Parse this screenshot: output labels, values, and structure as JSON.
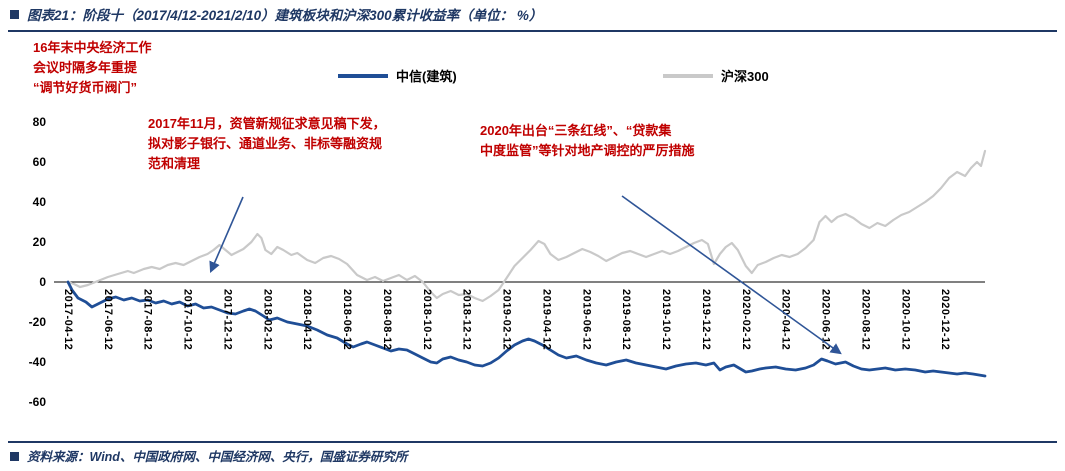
{
  "colors": {
    "navy": "#1F3864",
    "red": "#C00000",
    "arrow_blue": "#2F5597",
    "axis_text": "#000000"
  },
  "header": {
    "title": "图表21：阶段十（2017/4/12-2021/2/10）建筑板块和沪深300累计收益率（单位：  %）"
  },
  "annotations": {
    "note1": "16年末中央经济工作\n会议时隔多年重提\n“调节好货币阀门”",
    "note2": "2017年11月，资管新规征求意见稿下发，\n拟对影子银行、通道业务、非标等融资规\n范和清理",
    "note3": "2020年出台“三条红线”、“贷款集\n中度监管”等针对地产调控的严厉措施"
  },
  "footer": {
    "source": "资料来源：Wind、中国政府网、中国经济网、央行，国盛证券研究所"
  },
  "chart_data": {
    "type": "line",
    "title": "阶段十（2017/4/12-2021/2/10）建筑板块和沪深300累计收益率",
    "unit": "%",
    "xlabel": "",
    "ylabel": "",
    "ylim": [
      -60,
      80
    ],
    "y_ticks": [
      80,
      60,
      40,
      20,
      0,
      -20,
      -40,
      -60
    ],
    "x_unit": "months_since_2017-04-12",
    "x_range": [
      0,
      46
    ],
    "x_ticks": [
      0,
      2,
      4,
      6,
      8,
      10,
      12,
      14,
      16,
      18,
      20,
      22,
      24,
      26,
      28,
      30,
      32,
      34,
      36,
      38,
      40,
      42,
      44
    ],
    "x_tick_labels": [
      "2017-04-12",
      "2017-06-12",
      "2017-08-12",
      "2017-10-12",
      "2017-12-12",
      "2018-02-12",
      "2018-04-12",
      "2018-06-12",
      "2018-08-12",
      "2018-10-12",
      "2018-12-12",
      "2019-02-12",
      "2019-04-12",
      "2019-06-12",
      "2019-08-12",
      "2019-10-12",
      "2019-12-12",
      "2020-02-12",
      "2020-04-12",
      "2020-06-12",
      "2020-08-12",
      "2020-10-12",
      "2020-12-12"
    ],
    "gridlines": false,
    "legend_position": "top",
    "series": [
      {
        "name": "中信(建筑)",
        "color": "#1F4E96",
        "x": [
          0,
          0.2,
          0.5,
          0.9,
          1.2,
          1.5,
          2,
          2.4,
          2.8,
          3.2,
          3.6,
          4,
          4.4,
          4.8,
          5.2,
          5.6,
          6,
          6.4,
          6.8,
          7.2,
          7.6,
          8,
          8.4,
          8.8,
          9.1,
          9.4,
          9.8,
          10.1,
          10.5,
          11,
          11.5,
          12,
          12.5,
          13,
          13.5,
          14,
          14.3,
          14.7,
          15,
          15.4,
          15.8,
          16.2,
          16.6,
          17,
          17.4,
          17.8,
          18.2,
          18.5,
          18.8,
          19.2,
          19.6,
          20,
          20.4,
          20.8,
          21.2,
          21.6,
          22,
          22.4,
          22.8,
          23.1,
          23.4,
          23.8,
          24.2,
          24.6,
          25,
          25.5,
          26,
          26.5,
          27,
          27.5,
          28,
          28.5,
          29,
          29.5,
          30,
          30.5,
          31,
          31.5,
          32,
          32.4,
          32.7,
          33,
          33.4,
          34,
          34.3,
          34.7,
          35,
          35.5,
          36,
          36.5,
          37,
          37.4,
          37.8,
          38.1,
          38.5,
          39,
          39.4,
          39.8,
          40.2,
          40.6,
          41,
          41.5,
          42,
          42.5,
          43,
          43.4,
          43.8,
          44.2,
          44.6,
          45,
          45.4,
          45.7,
          46
        ],
        "y": [
          0,
          -4,
          -8,
          -10,
          -12.5,
          -11,
          -8.5,
          -7.5,
          -9,
          -8,
          -9.5,
          -9,
          -10.5,
          -9.5,
          -11,
          -10,
          -12,
          -11,
          -13,
          -12.5,
          -14,
          -15.5,
          -16,
          -14.5,
          -13.5,
          -14.5,
          -17,
          -19,
          -18,
          -20,
          -21,
          -22,
          -24,
          -26.5,
          -28,
          -31,
          -32.5,
          -31,
          -30,
          -31.5,
          -33,
          -34.5,
          -33.5,
          -34,
          -36,
          -38,
          -40,
          -40.5,
          -38.5,
          -37.5,
          -39,
          -40,
          -41.5,
          -42,
          -40.5,
          -38,
          -34.5,
          -31.5,
          -29.5,
          -28.5,
          -29.5,
          -31.5,
          -34,
          -36.5,
          -38,
          -37,
          -39,
          -40.5,
          -41.5,
          -40,
          -39,
          -40.5,
          -41.5,
          -42.5,
          -43.5,
          -42,
          -41,
          -40.5,
          -41.5,
          -40.5,
          -44,
          -42.5,
          -41.5,
          -45,
          -44.5,
          -43.5,
          -43,
          -42.5,
          -43.5,
          -44,
          -43,
          -41.5,
          -38.5,
          -39.5,
          -41,
          -40,
          -42,
          -43.5,
          -44,
          -43.5,
          -43,
          -44,
          -43.5,
          -44,
          -45,
          -44.5,
          -45,
          -45.5,
          -46,
          -45.5,
          -46,
          -46.5,
          -47
        ]
      },
      {
        "name": "沪深300",
        "color": "#C9C9C9",
        "x": [
          0,
          0.3,
          0.6,
          1,
          1.5,
          2,
          2.5,
          3,
          3.3,
          3.8,
          4.2,
          4.6,
          5,
          5.4,
          5.8,
          6.2,
          6.6,
          7,
          7.3,
          7.6,
          7.9,
          8.2,
          8.5,
          8.8,
          9.2,
          9.5,
          9.7,
          9.9,
          10.2,
          10.5,
          10.8,
          11.2,
          11.5,
          12,
          12.4,
          12.8,
          13.2,
          13.6,
          14,
          14.5,
          15,
          15.4,
          15.8,
          16.2,
          16.6,
          17,
          17.4,
          17.8,
          18.2,
          18.5,
          18.8,
          19.2,
          19.6,
          20,
          20.4,
          20.8,
          21.2,
          21.6,
          22,
          22.4,
          22.8,
          23.2,
          23.6,
          23.9,
          24.2,
          24.6,
          25,
          25.4,
          25.8,
          26.2,
          26.6,
          27,
          27.4,
          27.8,
          28.2,
          28.6,
          29,
          29.4,
          29.8,
          30.2,
          30.6,
          31,
          31.4,
          31.8,
          32.1,
          32.4,
          32.7,
          33,
          33.3,
          33.6,
          34,
          34.3,
          34.6,
          35,
          35.4,
          35.8,
          36.2,
          36.6,
          37,
          37.4,
          37.7,
          38,
          38.3,
          38.6,
          39,
          39.4,
          39.8,
          40.2,
          40.6,
          41,
          41.4,
          41.8,
          42.2,
          42.6,
          43,
          43.4,
          43.8,
          44.2,
          44.6,
          45,
          45.3,
          45.6,
          45.8,
          46
        ],
        "y": [
          0,
          -1,
          -2.5,
          -1.5,
          0.5,
          2.5,
          4,
          5.5,
          4.5,
          6.5,
          7.5,
          6.5,
          8.5,
          9.5,
          8.5,
          10.5,
          12.5,
          14,
          16,
          18.5,
          16,
          13.5,
          15,
          16.5,
          20,
          24,
          22,
          16,
          14,
          17.5,
          16,
          13.5,
          14.5,
          11,
          9.5,
          12,
          13,
          11.5,
          9,
          3.5,
          1,
          2.5,
          0.5,
          2,
          3.5,
          1,
          3,
          0,
          -5,
          -8,
          -6,
          -4.5,
          -6.5,
          -6,
          -8,
          -9.5,
          -7,
          -4,
          2,
          8,
          12,
          16,
          20.5,
          19,
          14,
          11,
          12.5,
          14.5,
          16.5,
          15,
          13,
          10.5,
          12.5,
          14.5,
          15.5,
          14,
          12.5,
          14,
          15.5,
          14,
          15.5,
          17.5,
          19.5,
          21,
          19,
          9,
          14,
          17.5,
          19.5,
          16,
          8,
          4.5,
          8.5,
          10,
          12,
          13.5,
          12.5,
          14,
          17,
          21,
          30,
          33,
          30,
          32.5,
          34,
          32,
          29,
          27,
          29.5,
          28,
          31,
          33.5,
          35,
          37.5,
          40,
          43,
          47,
          52,
          55,
          53,
          57,
          60,
          58,
          65.5
        ]
      }
    ]
  }
}
